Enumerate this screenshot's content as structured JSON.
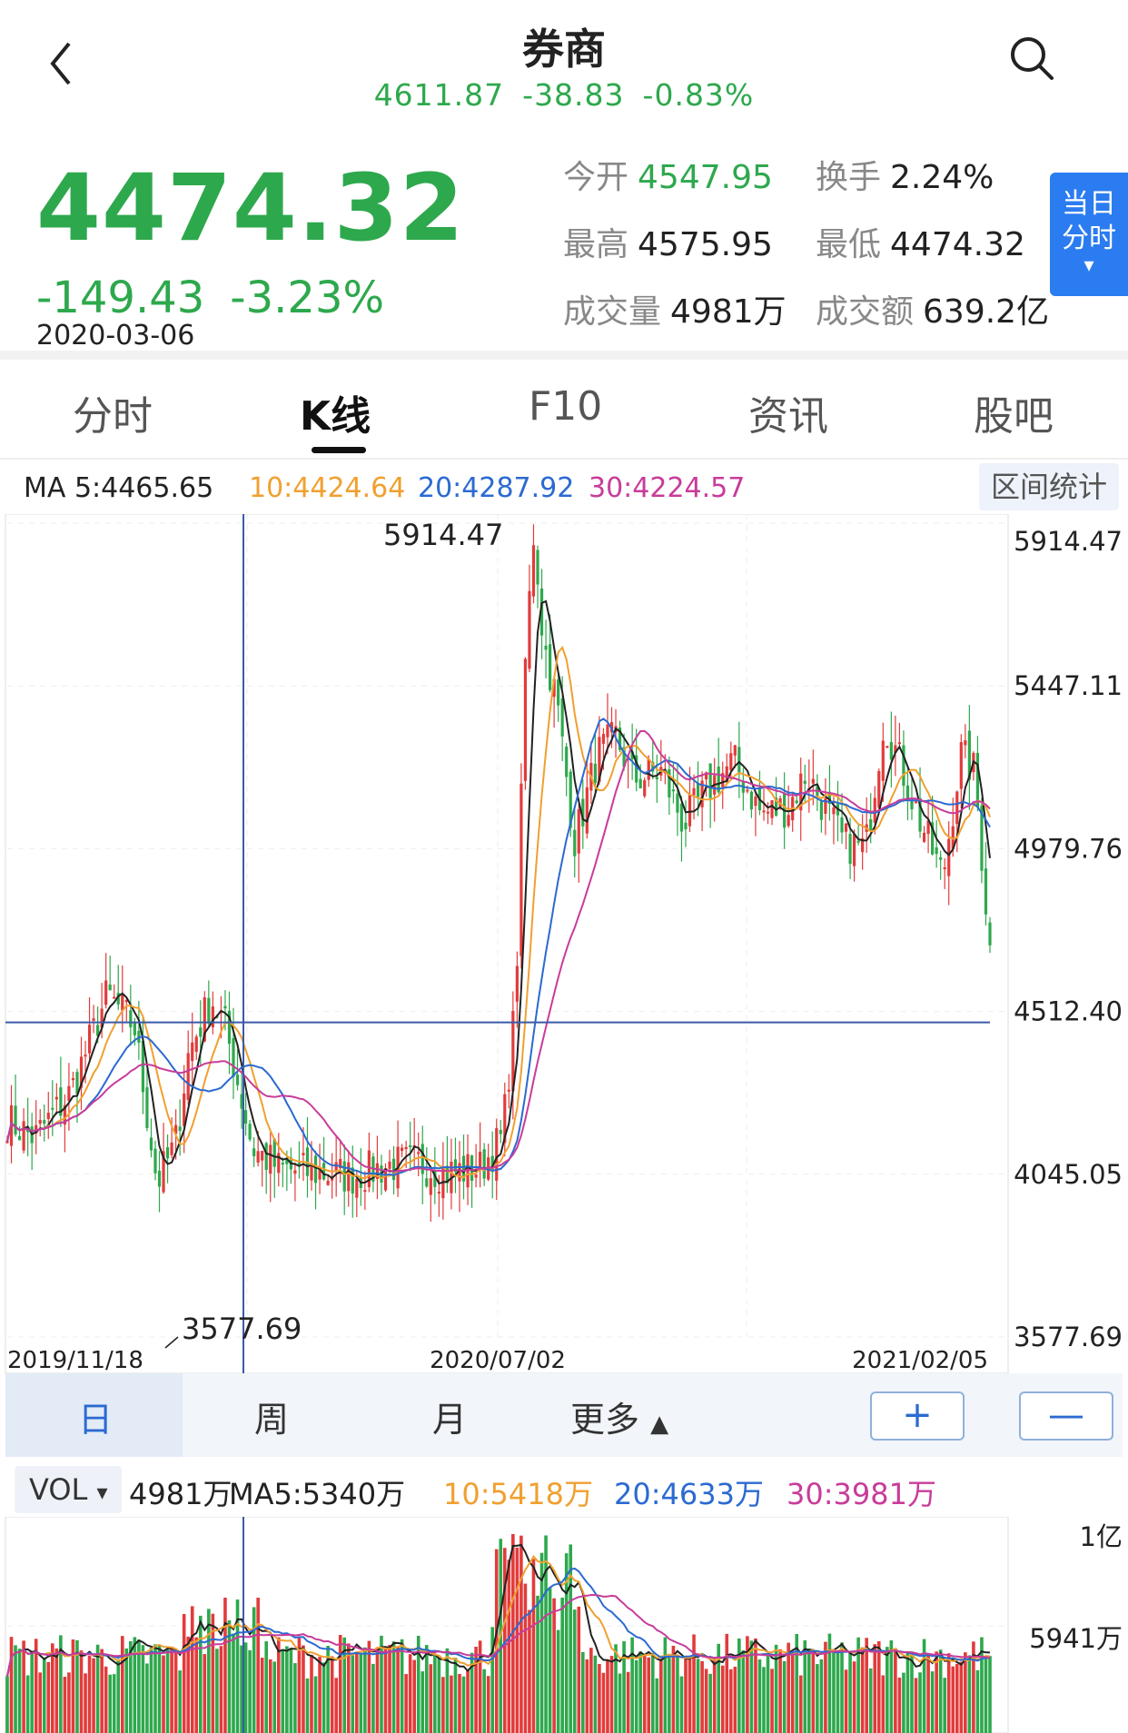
{
  "header": {
    "title": "券商",
    "ref_price": "4611.87",
    "ref_change": "-38.83",
    "ref_pct": "-0.83%"
  },
  "quote": {
    "price": "4474.32",
    "change": "-149.43",
    "change_pct": "-3.23%",
    "date": "2020-03-06",
    "open_label": "今开",
    "open": "4547.95",
    "turnover_label": "换手",
    "turnover": "2.24%",
    "high_label": "最高",
    "high": "4575.95",
    "low_label": "最低",
    "low": "4474.32",
    "volume_label": "成交量",
    "volume": "4981万",
    "amount_label": "成交额",
    "amount": "639.2亿"
  },
  "intraday_button": {
    "line1": "当日",
    "line2": "分时",
    "arrow": "▾"
  },
  "tabs": [
    "分时",
    "K线",
    "F10",
    "资讯",
    "股吧"
  ],
  "active_tab": 1,
  "ma": {
    "ma5": "MA 5:4465.65",
    "ma10": "10:4424.64",
    "ma20": "20:4287.92",
    "ma30": "30:4224.57",
    "range_stats": "区间统计"
  },
  "kline": {
    "y_labels": [
      "5914.47",
      "5447.11",
      "4979.76",
      "4512.40",
      "4045.05",
      "3577.69"
    ],
    "max_label": "5914.47",
    "min_label": "3577.69",
    "x_labels": [
      "2019/11/18",
      "2020/07/02",
      "2021/02/05"
    ]
  },
  "periods": {
    "day": "日",
    "week": "周",
    "month": "月",
    "more": "更多",
    "more_arrow": "▲",
    "zoom_in": "+",
    "zoom_out": "—"
  },
  "volume": {
    "tag": "VOL",
    "tag_arrow": "▾",
    "value": "4981万",
    "ma5": "MA5:5340万",
    "ma10": "10:5418万",
    "ma20": "20:4633万",
    "ma30": "30:3981万",
    "y_labels": [
      "1亿",
      "5941万"
    ]
  },
  "colors": {
    "up": "#e23b3b",
    "down": "#2ea84d",
    "ma5": "#222222",
    "ma10": "#f0a030",
    "ma20": "#2b6ad1",
    "ma30": "#c83c9a",
    "crosshair": "#3b5aa8"
  }
}
